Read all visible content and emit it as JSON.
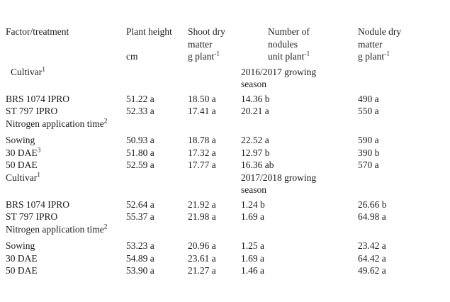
{
  "table": {
    "header": {
      "factor_label": "Factor/treatment",
      "col_plant_height": {
        "name": "Plant height",
        "unit": "cm",
        "unit_sup": ""
      },
      "col_shoot_dry_matter": {
        "name": "Shoot dry matter",
        "unit": "g plant",
        "unit_sup": "-1"
      },
      "col_number_of_nodules": {
        "name": "Number of nodules",
        "unit": "unit plant",
        "unit_sup": "-1"
      },
      "col_nodule_dry_matter": {
        "name": "Nodule dry matter",
        "unit": "g plant",
        "unit_sup": "-1"
      }
    },
    "rows": [
      {
        "type": "section",
        "label": "Cultivar",
        "label_sup": "1",
        "note": "2016/2017 growing season"
      },
      {
        "type": "data",
        "factor": "BRS 1074 IPRO",
        "factor_sup": "",
        "plant_height": "51.22 a",
        "shoot_dry_matter": "18.50 a",
        "nodules": "14.36 b",
        "nodule_dry_matter": "490 a"
      },
      {
        "type": "data",
        "factor": "ST 797 IPRO",
        "factor_sup": "",
        "plant_height": "52.33 a",
        "shoot_dry_matter": "17.41 a",
        "nodules": "20.21 a",
        "nodule_dry_matter": "550 a"
      },
      {
        "type": "section",
        "label": "Nitrogen application time",
        "label_sup": "2",
        "note": ""
      },
      {
        "type": "data",
        "factor": "Sowing",
        "factor_sup": "",
        "plant_height": "50.93 a",
        "shoot_dry_matter": "18.78 a",
        "nodules": "22.52 a",
        "nodule_dry_matter": "590 a"
      },
      {
        "type": "data",
        "factor": "30 DAE",
        "factor_sup": "3",
        "plant_height": "51.80 a",
        "shoot_dry_matter": "17.32 a",
        "nodules": "12.97 b",
        "nodule_dry_matter": "390 b"
      },
      {
        "type": "data",
        "factor": "50 DAE",
        "factor_sup": "",
        "plant_height": "52.59 a",
        "shoot_dry_matter": "17.77 a",
        "nodules": "16.36 ab",
        "nodule_dry_matter": "570 a"
      },
      {
        "type": "section",
        "label": "Cultivar",
        "label_sup": "1",
        "note": "2017/2018 growing season"
      },
      {
        "type": "data",
        "factor": "BRS 1074 IPRO",
        "factor_sup": "",
        "plant_height": "52.64 a",
        "shoot_dry_matter": "21.92 a",
        "nodules": "1.24 b",
        "nodule_dry_matter": "26.66 b"
      },
      {
        "type": "data",
        "factor": "ST 797 IPRO",
        "factor_sup": "",
        "plant_height": "55.37 a",
        "shoot_dry_matter": "21.98 a",
        "nodules": "1.69 a",
        "nodule_dry_matter": "64.98 a"
      },
      {
        "type": "section",
        "label": "Nitrogen application time",
        "label_sup": "2",
        "note": ""
      },
      {
        "type": "data",
        "factor": "Sowing",
        "factor_sup": "",
        "plant_height": "53.23 a",
        "shoot_dry_matter": "20.96 a",
        "nodules": "1.25 a",
        "nodule_dry_matter": "23.42 a"
      },
      {
        "type": "data",
        "factor": "30 DAE",
        "factor_sup": "",
        "plant_height": "54.89 a",
        "shoot_dry_matter": "23.61 a",
        "nodules": "1.69 a",
        "nodule_dry_matter": "64.42 a"
      },
      {
        "type": "data",
        "factor": "50 DAE",
        "factor_sup": "",
        "plant_height": "53.90 a",
        "shoot_dry_matter": "21.27 a",
        "nodules": "1.46 a",
        "nodule_dry_matter": "49.62 a"
      }
    ]
  }
}
